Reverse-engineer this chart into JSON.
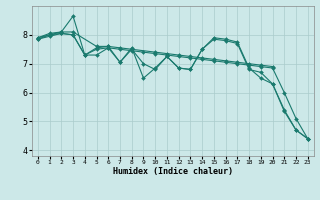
{
  "xlabel": "Humidex (Indice chaleur)",
  "ylabel": "",
  "bg_color": "#cce8e8",
  "line_color": "#1a7a6e",
  "grid_color": "#aacccc",
  "xlim": [
    -0.5,
    23.5
  ],
  "ylim": [
    3.8,
    9.0
  ],
  "yticks": [
    4,
    5,
    6,
    7,
    8
  ],
  "xticks": [
    0,
    1,
    2,
    3,
    4,
    5,
    6,
    7,
    8,
    9,
    10,
    11,
    12,
    13,
    14,
    15,
    16,
    17,
    18,
    19,
    20,
    21,
    22,
    23
  ],
  "lines": [
    {
      "x": [
        0,
        1,
        2,
        3,
        4,
        5,
        6,
        7,
        8,
        9,
        10,
        11,
        12,
        13,
        14,
        15,
        16,
        17,
        18,
        19,
        20,
        21,
        22,
        23
      ],
      "y": [
        7.9,
        8.0,
        8.1,
        8.65,
        7.3,
        7.3,
        7.55,
        7.05,
        7.55,
        6.5,
        6.85,
        7.25,
        6.85,
        6.8,
        7.5,
        7.9,
        7.85,
        7.75,
        6.85,
        6.5,
        6.3,
        5.35,
        4.7,
        4.4
      ]
    },
    {
      "x": [
        0,
        1,
        2,
        3,
        5,
        6,
        7,
        8,
        10,
        11,
        12,
        13,
        14,
        15,
        16,
        17,
        18,
        19,
        20
      ],
      "y": [
        7.9,
        8.05,
        8.1,
        8.1,
        7.6,
        7.6,
        7.55,
        7.5,
        7.4,
        7.35,
        7.3,
        7.25,
        7.2,
        7.15,
        7.1,
        7.05,
        7.0,
        6.95,
        6.9
      ]
    },
    {
      "x": [
        0,
        1,
        2,
        3,
        4,
        5,
        6,
        7,
        8,
        9,
        10,
        11,
        12,
        13,
        14,
        15,
        16,
        17,
        18,
        19,
        20,
        21,
        22,
        23
      ],
      "y": [
        7.85,
        7.95,
        8.05,
        8.0,
        7.3,
        7.5,
        7.55,
        7.5,
        7.45,
        7.4,
        7.35,
        7.3,
        7.25,
        7.2,
        7.15,
        7.1,
        7.05,
        7.0,
        6.95,
        6.9,
        6.85,
        6.0,
        5.1,
        4.4
      ]
    },
    {
      "x": [
        0,
        1,
        2,
        3,
        4,
        5,
        6,
        7,
        8,
        9,
        10,
        11,
        12,
        13,
        14,
        15,
        16,
        17,
        18,
        19,
        20,
        21,
        22,
        23
      ],
      "y": [
        7.85,
        8.0,
        8.05,
        8.0,
        7.3,
        7.55,
        7.6,
        7.05,
        7.5,
        7.0,
        6.8,
        7.25,
        6.85,
        6.8,
        7.5,
        7.85,
        7.8,
        7.7,
        6.8,
        6.7,
        6.3,
        5.4,
        4.7,
        4.4
      ]
    }
  ]
}
